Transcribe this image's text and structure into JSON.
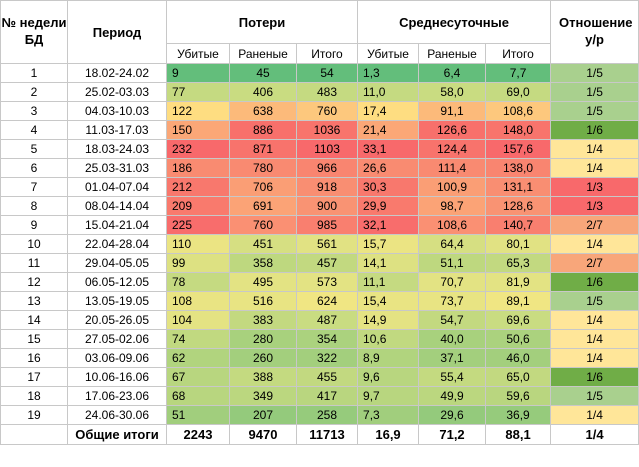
{
  "headers": {
    "num": "№ недели БД",
    "period": "Период",
    "losses": "Потери",
    "daily": "Среднесуточные",
    "ratio": "Отношение у/р",
    "killed": "Убитые",
    "wounded": "Раненые",
    "total": "Итого"
  },
  "rows": [
    {
      "n": "1",
      "period": "18.02-24.02",
      "k": "9",
      "w": "45",
      "t": "54",
      "dk": "1,3",
      "dw": "6,4",
      "dt": "7,7",
      "r": "1/5",
      "ck": "#63be7b",
      "cw": "#63be7b",
      "ct": "#63be7b",
      "cdk": "#63be7b",
      "cdw": "#63be7b",
      "cdt": "#63be7b",
      "cr": "#a9d08e"
    },
    {
      "n": "2",
      "period": "25.02-03.03",
      "k": "77",
      "w": "406",
      "t": "483",
      "dk": "11,0",
      "dw": "58,0",
      "dt": "69,0",
      "r": "1/5",
      "ck": "#c5da81",
      "cw": "#c9dc81",
      "ct": "#c5da81",
      "cdk": "#c5da81",
      "cdw": "#c9dc81",
      "cdt": "#c5da81",
      "cr": "#a9d08e"
    },
    {
      "n": "3",
      "period": "04.03-10.03",
      "k": "122",
      "w": "638",
      "t": "760",
      "dk": "17,4",
      "dw": "91,1",
      "dt": "108,6",
      "r": "1/5",
      "ck": "#fedd81",
      "cw": "#fcba7a",
      "ct": "#fdc87d",
      "cdk": "#fedd81",
      "cdw": "#fcba7a",
      "cdt": "#fdc87d",
      "cr": "#a9d08e"
    },
    {
      "n": "4",
      "period": "11.03-17.03",
      "k": "150",
      "w": "886",
      "t": "1036",
      "dk": "21,4",
      "dw": "126,6",
      "dt": "148,0",
      "r": "1/6",
      "ck": "#fba777",
      "cw": "#f8706b",
      "ct": "#f8746c",
      "cdk": "#fba777",
      "cdw": "#f8706b",
      "cdt": "#f8746c",
      "cr": "#70ad47"
    },
    {
      "n": "5",
      "period": "18.03-24.03",
      "k": "232",
      "w": "871",
      "t": "1103",
      "dk": "33,1",
      "dw": "124,4",
      "dt": "157,6",
      "r": "1/4",
      "ck": "#f8696b",
      "cw": "#f8736c",
      "ct": "#f8696b",
      "cdk": "#f8696b",
      "cdw": "#f8736c",
      "cdt": "#f8696b",
      "cr": "#ffe699"
    },
    {
      "n": "6",
      "period": "25.03-31.03",
      "k": "186",
      "w": "780",
      "t": "966",
      "dk": "26,6",
      "dw": "111,4",
      "dt": "138,0",
      "r": "1/4",
      "ck": "#f98b71",
      "cw": "#f98a71",
      "ct": "#f98570",
      "cdk": "#f98b71",
      "cdw": "#f98a71",
      "cdt": "#f98570",
      "cr": "#ffe699"
    },
    {
      "n": "7",
      "period": "01.04-07.04",
      "k": "212",
      "w": "706",
      "t": "918",
      "dk": "30,3",
      "dw": "100,9",
      "dt": "131,1",
      "r": "1/3",
      "ck": "#f8786d",
      "cw": "#fa9e75",
      "ct": "#f98e72",
      "cdk": "#f8786d",
      "cdw": "#fa9e75",
      "cdt": "#f98e72",
      "cr": "#f8696b"
    },
    {
      "n": "8",
      "period": "08.04-14.04",
      "k": "209",
      "w": "691",
      "t": "900",
      "dk": "29,9",
      "dw": "98,7",
      "dt": "128,6",
      "r": "1/3",
      "ck": "#f97a6d",
      "cw": "#fba376",
      "ct": "#f99373",
      "cdk": "#f97a6d",
      "cdw": "#fba376",
      "cdt": "#f99373",
      "cr": "#f8696b"
    },
    {
      "n": "9",
      "period": "15.04-21.04",
      "k": "225",
      "w": "760",
      "t": "985",
      "dk": "32,1",
      "dw": "108,6",
      "dt": "140,7",
      "r": "2/7",
      "ck": "#f86d6c",
      "cw": "#fa9073",
      "ct": "#f97f6f",
      "cdk": "#f86d6c",
      "cdw": "#fa9073",
      "cdt": "#f97f6f",
      "cr": "#f8a67a"
    },
    {
      "n": "10",
      "period": "22.04-28.04",
      "k": "110",
      "w": "451",
      "t": "561",
      "dk": "15,7",
      "dw": "64,4",
      "dt": "80,1",
      "r": "1/4",
      "ck": "#ebe483",
      "cw": "#d6df82",
      "ct": "#e1e283",
      "cdk": "#ebe483",
      "cdw": "#d6df82",
      "cdt": "#e1e283",
      "cr": "#ffe699"
    },
    {
      "n": "11",
      "period": "29.04-05.05",
      "k": "99",
      "w": "358",
      "t": "457",
      "dk": "14,1",
      "dw": "51,1",
      "dt": "65,3",
      "r": "2/7",
      "ck": "#dde182",
      "cw": "#bed87f",
      "ct": "#c2d980",
      "cdk": "#dde182",
      "cdw": "#bed87f",
      "cdt": "#c2d980",
      "cr": "#f8a67a"
    },
    {
      "n": "12",
      "period": "06.05-12.05",
      "k": "78",
      "w": "495",
      "t": "573",
      "dk": "11,1",
      "dw": "70,7",
      "dt": "81,9",
      "r": "1/6",
      "ck": "#c5da81",
      "cw": "#e3e383",
      "ct": "#e3e383",
      "cdk": "#c5da81",
      "cdw": "#e3e383",
      "cdt": "#e3e383",
      "cr": "#70ad47"
    },
    {
      "n": "13",
      "period": "13.05-19.05",
      "k": "108",
      "w": "516",
      "t": "624",
      "dk": "15,4",
      "dw": "73,7",
      "dt": "89,1",
      "r": "1/5",
      "ck": "#e9e483",
      "cw": "#e8e483",
      "ct": "#f0e683",
      "cdk": "#e9e483",
      "cdw": "#e8e483",
      "cdt": "#f0e683",
      "cr": "#a9d08e"
    },
    {
      "n": "14",
      "period": "20.05-26.05",
      "k": "104",
      "w": "383",
      "t": "487",
      "dk": "14,9",
      "dw": "54,7",
      "dt": "69,6",
      "r": "1/4",
      "ck": "#e4e383",
      "cw": "#c3d980",
      "ct": "#c9dc81",
      "cdk": "#e4e383",
      "cdw": "#c3d980",
      "cdt": "#c9dc81",
      "cr": "#ffe699"
    },
    {
      "n": "15",
      "period": "27.05-02.06",
      "k": "74",
      "w": "280",
      "t": "354",
      "dk": "10,6",
      "dw": "40,0",
      "dt": "50,6",
      "r": "1/4",
      "ck": "#c1d980",
      "cw": "#a8d17d",
      "ct": "#abd27e",
      "cdk": "#c1d980",
      "cdw": "#a8d17d",
      "cdt": "#abd27e",
      "cr": "#ffe699"
    },
    {
      "n": "16",
      "period": "03.06-09.06",
      "k": "62",
      "w": "260",
      "t": "322",
      "dk": "8,9",
      "dw": "37,1",
      "dt": "46,0",
      "r": "1/4",
      "ck": "#b1d47e",
      "cw": "#a3cf7d",
      "ct": "#a3cf7d",
      "cdk": "#b1d47e",
      "cdw": "#a3cf7d",
      "cdt": "#a3cf7d",
      "cr": "#ffe699"
    },
    {
      "n": "17",
      "period": "10.06-16.06",
      "k": "67",
      "w": "388",
      "t": "455",
      "dk": "9,6",
      "dw": "55,4",
      "dt": "65,0",
      "r": "1/6",
      "ck": "#b8d67f",
      "cw": "#c4da80",
      "ct": "#c2d980",
      "cdk": "#b8d67f",
      "cdw": "#c4da80",
      "cdt": "#c2d980",
      "cr": "#70ad47"
    },
    {
      "n": "18",
      "period": "17.06-23.06",
      "k": "68",
      "w": "349",
      "t": "417",
      "dk": "9,7",
      "dw": "49,9",
      "dt": "59,6",
      "r": "1/5",
      "ck": "#b8d67f",
      "cw": "#bbd77f",
      "ct": "#b9d67f",
      "cdk": "#b8d67f",
      "cdw": "#bbd77f",
      "cdt": "#b9d67f",
      "cr": "#a9d08e"
    },
    {
      "n": "19",
      "period": "24.06-30.06",
      "k": "51",
      "w": "207",
      "t": "258",
      "dk": "7,3",
      "dw": "29,6",
      "dt": "36,9",
      "r": "1/4",
      "ck": "#a1ce7d",
      "cw": "#94ca7c",
      "ct": "#96cb7c",
      "cdk": "#a1ce7d",
      "cdw": "#94ca7c",
      "cdt": "#96cb7c",
      "cr": "#ffe699"
    }
  ],
  "totals": {
    "label": "Общие итоги",
    "k": "2243",
    "w": "9470",
    "t": "11713",
    "dk": "16,9",
    "dw": "71,2",
    "dt": "88,1",
    "r": "1/4"
  }
}
